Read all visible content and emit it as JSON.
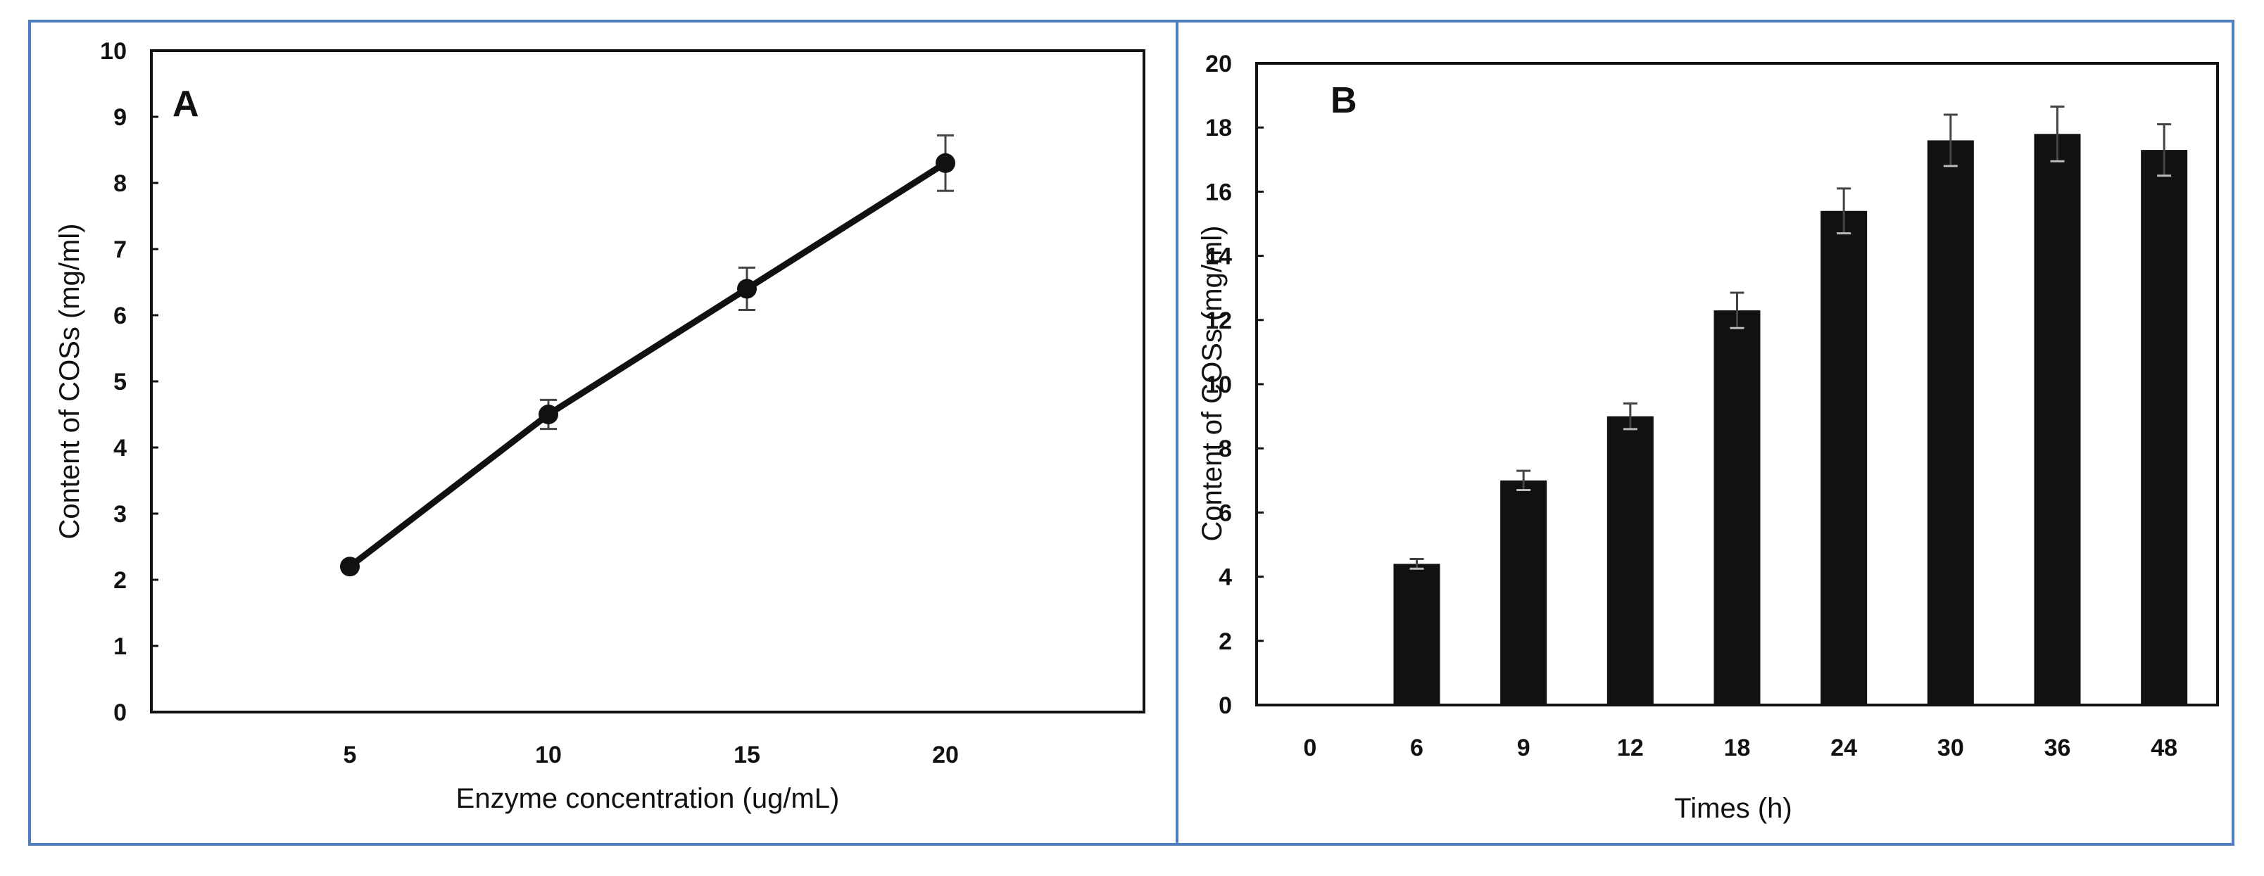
{
  "colors": {
    "frame": "#4f7fbf",
    "ink": "#111111",
    "error_bar": "#444444"
  },
  "chart_data": [
    {
      "type": "line",
      "panel_label": "A",
      "xlabel": "Enzyme concentration (ug/mL)",
      "ylabel": "Content of COSs (mg/ml)",
      "x": [
        5,
        10,
        15,
        20
      ],
      "x_tick_labels": [
        "5",
        "10",
        "15",
        "20"
      ],
      "xlim": [
        0,
        25
      ],
      "y": [
        2.2,
        4.5,
        6.4,
        8.3
      ],
      "y_err": [
        0.0,
        0.22,
        0.32,
        0.42
      ],
      "ylim": [
        0,
        10
      ],
      "y_ticks": [
        0,
        1,
        2,
        3,
        4,
        5,
        6,
        7,
        8,
        9,
        10
      ],
      "grid": false,
      "marker": "circle"
    },
    {
      "type": "bar",
      "panel_label": "B",
      "xlabel": "Times (h)",
      "ylabel": "Content of COSs (mg/ml)",
      "categories": [
        "0",
        "6",
        "9",
        "12",
        "18",
        "24",
        "30",
        "36",
        "48"
      ],
      "values": [
        0,
        4.4,
        7.0,
        9.0,
        12.3,
        15.4,
        17.6,
        17.8,
        17.3
      ],
      "errors": [
        0,
        0.15,
        0.3,
        0.4,
        0.55,
        0.7,
        0.8,
        0.85,
        0.8
      ],
      "ylim": [
        0,
        20
      ],
      "y_ticks": [
        0,
        2,
        4,
        6,
        8,
        10,
        12,
        14,
        16,
        18,
        20
      ],
      "grid": false
    }
  ]
}
